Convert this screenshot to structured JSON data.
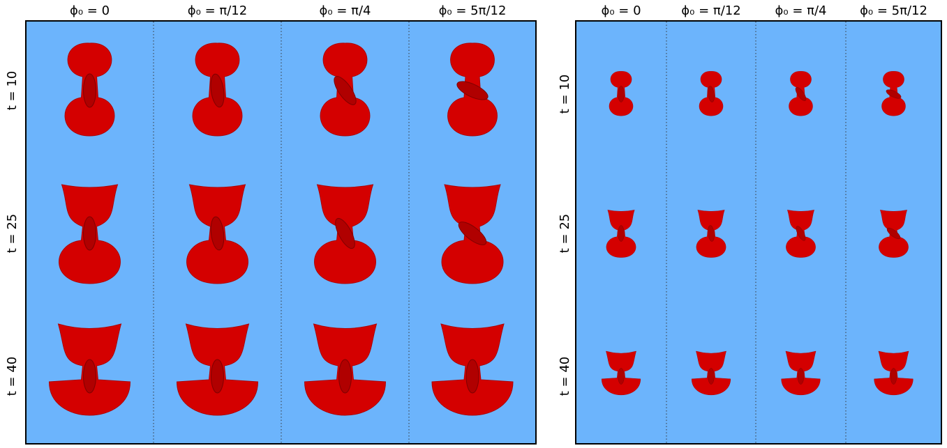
{
  "panels": [
    {
      "columns": [
        "ϕ₀ = 0",
        "ϕ₀ = π/12",
        "ϕ₀ = π/4",
        "ϕ₀ = 5π/12"
      ],
      "rows": [
        "t = 10",
        "t = 25",
        "t = 40"
      ]
    },
    {
      "columns": [
        "ϕ₀ = 0",
        "ϕ₀ = π/12",
        "ϕ₀ = π/4",
        "ϕ₀ = 5π/12"
      ],
      "rows": [
        "t = 10",
        "t = 25",
        "t = 40"
      ]
    }
  ]
}
